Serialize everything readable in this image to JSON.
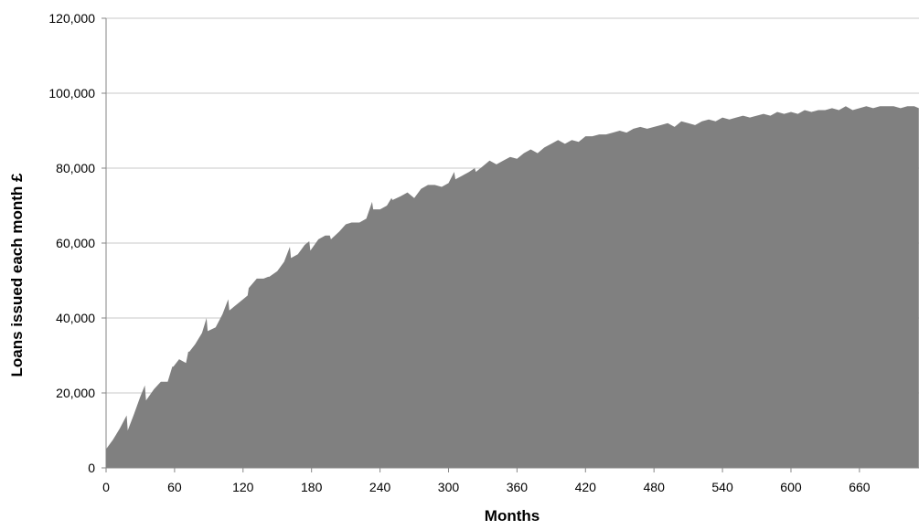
{
  "chart_data": {
    "type": "area",
    "title": "",
    "xlabel": "Months",
    "ylabel": "Loans issued each month £",
    "xlim": [
      0,
      712
    ],
    "ylim": [
      0,
      120000
    ],
    "grid": true,
    "legend": "none",
    "colors": {
      "fill": "#808080",
      "grid": "#c8c8c8",
      "axis": "#868686"
    },
    "x_ticks": [
      0,
      60,
      120,
      180,
      240,
      300,
      360,
      420,
      480,
      540,
      600,
      660
    ],
    "x_tick_labels": [
      "0",
      "60",
      "120",
      "180",
      "240",
      "300",
      "360",
      "420",
      "480",
      "540",
      "600",
      "660"
    ],
    "y_ticks": [
      0,
      20000,
      40000,
      60000,
      80000,
      100000,
      120000
    ],
    "y_tick_labels": [
      "0",
      "20,000",
      "40,000",
      "60,000",
      "80,000",
      "100,000",
      "120,000"
    ],
    "series": [
      {
        "x": [
          0,
          6,
          12,
          18,
          19,
          24,
          30,
          34,
          35,
          42,
          48,
          54,
          58,
          59,
          64,
          70,
          72,
          73,
          78,
          84,
          88,
          89,
          96,
          102,
          107,
          108,
          114,
          120,
          124,
          125,
          132,
          138,
          142,
          143,
          150,
          156,
          161,
          162,
          168,
          174,
          178,
          179,
          186,
          192,
          196,
          197,
          204,
          210,
          215,
          216,
          222,
          228,
          233,
          234,
          240,
          246,
          250,
          251,
          258,
          264,
          270,
          276,
          282,
          288,
          294,
          300,
          305,
          306,
          312,
          318,
          323,
          324,
          330,
          336,
          342,
          348,
          354,
          360,
          366,
          372,
          378,
          384,
          390,
          396,
          402,
          408,
          414,
          420,
          426,
          432,
          438,
          444,
          450,
          456,
          462,
          468,
          474,
          480,
          486,
          492,
          498,
          504,
          510,
          516,
          522,
          528,
          534,
          540,
          546,
          552,
          558,
          564,
          570,
          576,
          582,
          588,
          594,
          600,
          606,
          612,
          618,
          624,
          630,
          636,
          642,
          648,
          654,
          660,
          666,
          672,
          678,
          684,
          690,
          696,
          702,
          708,
          712
        ],
        "y": [
          5000,
          7500,
          10500,
          14000,
          10000,
          14000,
          19000,
          22000,
          18000,
          21000,
          23000,
          23000,
          27000,
          27000,
          29000,
          28000,
          31000,
          31000,
          33000,
          36000,
          40000,
          36500,
          37500,
          41000,
          45000,
          42000,
          43500,
          45000,
          46000,
          48000,
          50500,
          50500,
          51000,
          51000,
          52500,
          55000,
          59000,
          56000,
          57000,
          59500,
          60500,
          58000,
          61000,
          62000,
          62000,
          61000,
          63000,
          65000,
          65500,
          65500,
          65500,
          66500,
          71000,
          69000,
          69000,
          70000,
          72000,
          71500,
          72500,
          73500,
          72000,
          74500,
          75500,
          75500,
          75000,
          76000,
          79000,
          77000,
          78000,
          79000,
          80000,
          79000,
          80500,
          82000,
          81000,
          82000,
          83000,
          82500,
          84000,
          85000,
          84000,
          85500,
          86500,
          87500,
          86500,
          87500,
          87000,
          88500,
          88500,
          89000,
          89000,
          89500,
          90000,
          89500,
          90500,
          91000,
          90500,
          91000,
          91500,
          92000,
          91000,
          92500,
          92000,
          91500,
          92500,
          93000,
          92500,
          93500,
          93000,
          93500,
          94000,
          93500,
          94000,
          94500,
          94000,
          95000,
          94500,
          95000,
          94500,
          95500,
          95000,
          95500,
          95500,
          96000,
          95500,
          96500,
          95500,
          96000,
          96500,
          96000,
          96500,
          96500,
          96500,
          96000,
          96500,
          96500,
          96000
        ]
      }
    ]
  }
}
